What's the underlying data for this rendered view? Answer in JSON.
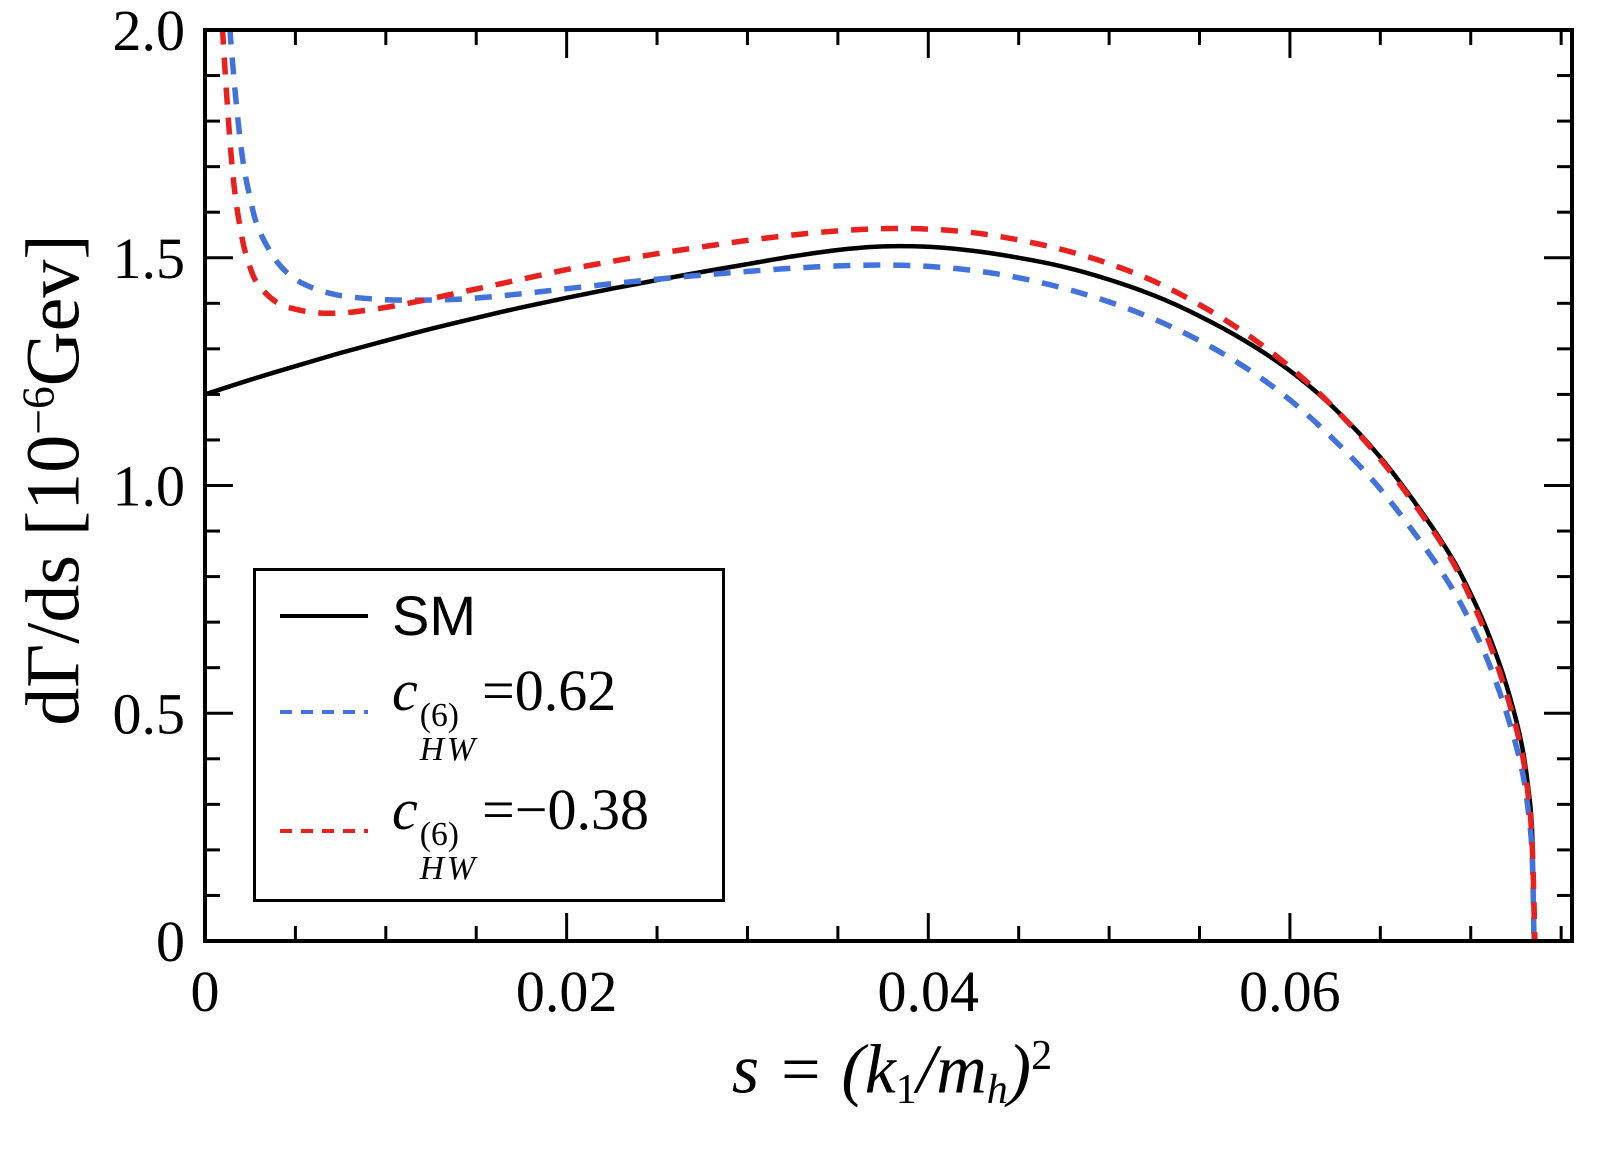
{
  "axes": {
    "xlabel": {
      "p0": "s = (k",
      "sub0": "1",
      "p1": "/m",
      "sub1": "h",
      "p2": ")",
      "sup0": "2"
    },
    "ylabel": {
      "p0": "dΓ/ds [10",
      "sup0": "−6",
      "p1": "Gev]"
    }
  },
  "legend": {
    "items": [
      {
        "label": "SM"
      },
      {
        "sym": "c",
        "sup": "(6)",
        "sub": "HW",
        "eq": "=0.62"
      },
      {
        "sym": "c",
        "sup": "(6)",
        "sub": "HW",
        "eq": "=−0.38"
      }
    ]
  },
  "chart_data": {
    "type": "line",
    "title": "",
    "xlabel": "s = (k1/mh)^2",
    "ylabel": "dGamma/ds [10^-6 Gev]",
    "xlim": [
      0,
      0.0756
    ],
    "ylim": [
      0,
      2.0
    ],
    "grid": false,
    "legend_position": "lower-left",
    "xticks": {
      "major": [
        0,
        0.02,
        0.04,
        0.06
      ],
      "labels": [
        "0",
        "0.02",
        "0.04",
        "0.06"
      ],
      "minor_step": 0.005
    },
    "yticks": {
      "major": [
        0,
        0.5,
        1.0,
        1.5,
        2.0
      ],
      "labels": [
        "0",
        "0.5",
        "1.0",
        "1.5",
        "2.0"
      ],
      "minor_step": 0.1
    },
    "series": [
      {
        "name": "SM",
        "color": "#000000",
        "style": "solid",
        "width": 4.5,
        "points": [
          [
            0,
            1.2
          ],
          [
            0.0025,
            1.232
          ],
          [
            0.005,
            1.262
          ],
          [
            0.0075,
            1.291
          ],
          [
            0.01,
            1.318
          ],
          [
            0.0125,
            1.344
          ],
          [
            0.015,
            1.368
          ],
          [
            0.0175,
            1.391
          ],
          [
            0.02,
            1.412
          ],
          [
            0.0225,
            1.432
          ],
          [
            0.025,
            1.451
          ],
          [
            0.0275,
            1.469
          ],
          [
            0.03,
            1.486
          ],
          [
            0.0325,
            1.503
          ],
          [
            0.035,
            1.517
          ],
          [
            0.0375,
            1.525
          ],
          [
            0.04,
            1.524
          ],
          [
            0.0425,
            1.515
          ],
          [
            0.045,
            1.5
          ],
          [
            0.0475,
            1.48
          ],
          [
            0.05,
            1.452
          ],
          [
            0.0525,
            1.417
          ],
          [
            0.055,
            1.372
          ],
          [
            0.0575,
            1.318
          ],
          [
            0.06,
            1.252
          ],
          [
            0.0625,
            1.168
          ],
          [
            0.065,
            1.062
          ],
          [
            0.0675,
            0.93
          ],
          [
            0.069,
            0.838
          ],
          [
            0.07,
            0.762
          ],
          [
            0.071,
            0.672
          ],
          [
            0.072,
            0.558
          ],
          [
            0.0728,
            0.435
          ],
          [
            0.0732,
            0.33
          ],
          [
            0.0734,
            0.235
          ],
          [
            0.0735,
            0
          ]
        ]
      },
      {
        "name": "cHW(6)=0.62",
        "color": "#4272db",
        "style": "dashed",
        "width": 5.5,
        "points": [
          [
            0.0009,
            2.4
          ],
          [
            0.0012,
            2.12
          ],
          [
            0.0015,
            1.94
          ],
          [
            0.002,
            1.74
          ],
          [
            0.0025,
            1.63
          ],
          [
            0.003,
            1.56
          ],
          [
            0.004,
            1.49
          ],
          [
            0.005,
            1.453
          ],
          [
            0.006,
            1.433
          ],
          [
            0.007,
            1.421
          ],
          [
            0.008,
            1.414
          ],
          [
            0.01,
            1.408
          ],
          [
            0.012,
            1.407
          ],
          [
            0.014,
            1.409
          ],
          [
            0.016,
            1.415
          ],
          [
            0.018,
            1.423
          ],
          [
            0.02,
            1.432
          ],
          [
            0.0225,
            1.443
          ],
          [
            0.025,
            1.453
          ],
          [
            0.0275,
            1.462
          ],
          [
            0.03,
            1.47
          ],
          [
            0.0325,
            1.477
          ],
          [
            0.035,
            1.482
          ],
          [
            0.0375,
            1.484
          ],
          [
            0.04,
            1.481
          ],
          [
            0.0425,
            1.472
          ],
          [
            0.045,
            1.456
          ],
          [
            0.0475,
            1.433
          ],
          [
            0.05,
            1.403
          ],
          [
            0.0525,
            1.365
          ],
          [
            0.055,
            1.318
          ],
          [
            0.0575,
            1.26
          ],
          [
            0.06,
            1.188
          ],
          [
            0.0625,
            1.098
          ],
          [
            0.065,
            0.992
          ],
          [
            0.0675,
            0.862
          ],
          [
            0.069,
            0.772
          ],
          [
            0.07,
            0.698
          ],
          [
            0.071,
            0.61
          ],
          [
            0.072,
            0.498
          ],
          [
            0.0728,
            0.382
          ],
          [
            0.0732,
            0.28
          ],
          [
            0.0734,
            0.185
          ],
          [
            0.0735,
            0
          ]
        ]
      },
      {
        "name": "cHW(6)=-0.38",
        "color": "#e8211e",
        "style": "dashed",
        "width": 5.5,
        "points": [
          [
            0.0006,
            2.4
          ],
          [
            0.0008,
            2.16
          ],
          [
            0.001,
            1.98
          ],
          [
            0.0015,
            1.7
          ],
          [
            0.002,
            1.553
          ],
          [
            0.0025,
            1.478
          ],
          [
            0.003,
            1.438
          ],
          [
            0.004,
            1.401
          ],
          [
            0.005,
            1.387
          ],
          [
            0.006,
            1.38
          ],
          [
            0.007,
            1.378
          ],
          [
            0.008,
            1.38
          ],
          [
            0.01,
            1.391
          ],
          [
            0.012,
            1.406
          ],
          [
            0.014,
            1.423
          ],
          [
            0.016,
            1.44
          ],
          [
            0.018,
            1.457
          ],
          [
            0.02,
            1.474
          ],
          [
            0.0225,
            1.492
          ],
          [
            0.025,
            1.509
          ],
          [
            0.0275,
            1.524
          ],
          [
            0.03,
            1.538
          ],
          [
            0.0325,
            1.55
          ],
          [
            0.035,
            1.559
          ],
          [
            0.0375,
            1.564
          ],
          [
            0.04,
            1.563
          ],
          [
            0.0425,
            1.555
          ],
          [
            0.045,
            1.539
          ],
          [
            0.0475,
            1.517
          ],
          [
            0.05,
            1.487
          ],
          [
            0.0525,
            1.448
          ],
          [
            0.055,
            1.397
          ],
          [
            0.0575,
            1.335
          ],
          [
            0.06,
            1.26
          ],
          [
            0.0625,
            1.168
          ],
          [
            0.065,
            1.058
          ],
          [
            0.0675,
            0.925
          ],
          [
            0.069,
            0.832
          ],
          [
            0.07,
            0.752
          ],
          [
            0.071,
            0.658
          ],
          [
            0.072,
            0.54
          ],
          [
            0.0728,
            0.42
          ],
          [
            0.0732,
            0.312
          ],
          [
            0.0734,
            0.21
          ],
          [
            0.07355,
            0
          ]
        ]
      }
    ]
  }
}
